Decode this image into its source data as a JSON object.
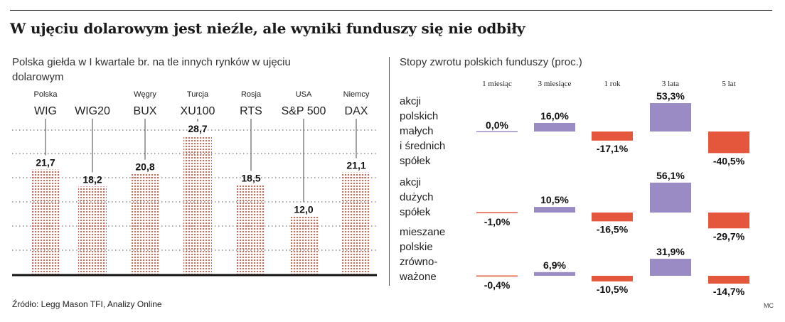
{
  "title": "W ujęciu dolarowym jest nieźle, ale wyniki funduszy się nie odbiły",
  "source": "Źródło: Legg Mason TFI, Analizy Online",
  "credit": "MC",
  "colors": {
    "dots": "#d9533f",
    "positive": "#9b8bc4",
    "negative": "#e4573d"
  },
  "chart_data": [
    {
      "type": "bar",
      "title": "Polska giełda w I kwartale br. na tle innych rynków w ujęciu dolarowym",
      "categories": [
        "WIG",
        "WIG20",
        "BUX",
        "XU100",
        "RTS",
        "S&P 500",
        "DAX"
      ],
      "groups": [
        "Polska",
        "",
        "Węgry",
        "Turcja",
        "Rosja",
        "USA",
        "Niemcy"
      ],
      "values": [
        21.7,
        18.2,
        20.8,
        28.7,
        18.5,
        12.0,
        21.1
      ],
      "labels": [
        "21,7",
        "18,2",
        "20,8",
        "28,7",
        "18,5",
        "12,0",
        "21,1"
      ],
      "ylim": [
        0,
        32
      ],
      "grid": true
    },
    {
      "type": "bar",
      "title": "Stopy zwrotu polskich funduszy (proc.)",
      "categories": [
        "1 miesiąc",
        "3 miesiące",
        "1 rok",
        "3 lata",
        "5 lat"
      ],
      "series": [
        {
          "name": "akcji polskich małych i średnich spółek",
          "label_lines": [
            "akcji",
            "polskich",
            "małych",
            "i średnich",
            "spółek"
          ],
          "values": [
            0.0,
            16.0,
            -17.1,
            53.3,
            -40.5
          ],
          "labels": [
            "0,0%",
            "16,0%",
            "-17,1%",
            "53,3%",
            "-40,5%"
          ]
        },
        {
          "name": "akcji dużych spółek",
          "label_lines": [
            "akcji",
            "dużych",
            "spółek"
          ],
          "values": [
            -1.0,
            10.5,
            -16.5,
            56.1,
            -29.7
          ],
          "labels": [
            "-1,0%",
            "10,5%",
            "-16,5%",
            "56,1%",
            "-29,7%"
          ]
        },
        {
          "name": "mieszane polskie zrównoważone",
          "label_lines": [
            "mieszane",
            "polskie",
            "zrówno-",
            "ważone"
          ],
          "values": [
            -0.4,
            6.9,
            -10.5,
            31.9,
            -14.7
          ],
          "labels": [
            "-0,4%",
            "6,9%",
            "-10,5%",
            "31,9%",
            "-14,7%"
          ]
        }
      ]
    }
  ]
}
